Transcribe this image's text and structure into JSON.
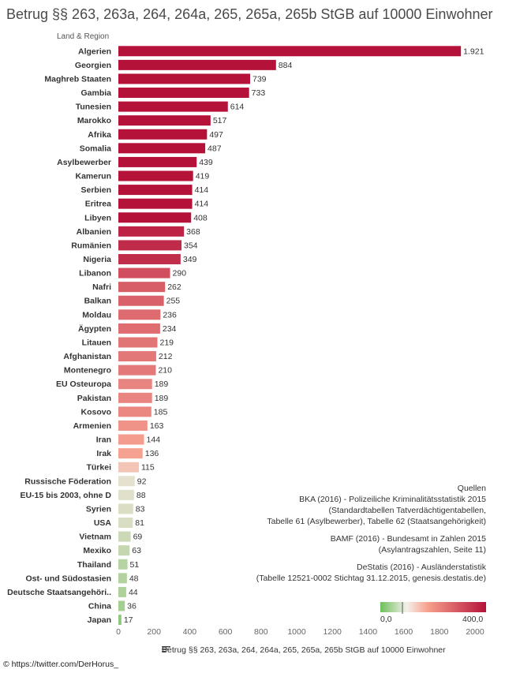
{
  "title": "Betrug §§ 263, 263a, 264, 264a, 265, 265a, 265b StGB auf 10000 Einwohner",
  "region_header": "Land & Region",
  "sources": {
    "heading": "Quellen",
    "lines1": [
      "BKA (2016) - Polizeiliche Kriminalitätsstatistik 2015",
      "(Standardtabellen Tatverdächtigentabellen,",
      "Tabelle 61 (Asylbewerber), Tabelle 62 (Staatsangehörigkeit)"
    ],
    "lines2": [
      "BAMF (2016) - Bundesamt in Zahlen 2015",
      "(Asylantragszahlen, Seite 11)"
    ],
    "lines3": [
      "DeStatis (2016) -  Ausländerstatistik",
      "(Tabelle 12521-0002 Stichtag 31.12.2015,  genesis.destatis.de)"
    ]
  },
  "legend": {
    "low_label": "0,0",
    "high_label": "400,0",
    "low_color": "#6dbf5c",
    "mid_color": "#f4f0ea",
    "high_color": "#b5123a"
  },
  "credit": "© https://twitter.com/DerHorus_",
  "chart_data": {
    "type": "bar",
    "orientation": "horizontal",
    "title": "Betrug §§ 263, 263a, 264, 264a, 265, 265a, 265b StGB auf 10000 Einwohner",
    "xlabel": "Betrug §§ 263, 263a, 264, 264a, 265, 265a, 265b StGB auf 10000 Einwohner",
    "ylabel": "Land & Region",
    "xlim": [
      0,
      2000
    ],
    "x_ticks": [
      "0",
      "200",
      "400",
      "600",
      "800",
      "1000",
      "1200",
      "1400",
      "1600",
      "1800",
      "2000"
    ],
    "grid": false,
    "categories": [
      "Algerien",
      "Georgien",
      "Maghreb Staaten",
      "Gambia",
      "Tunesien",
      "Marokko",
      "Afrika",
      "Somalia",
      "Asylbewerber",
      "Kamerun",
      "Serbien",
      "Eritrea",
      "Libyen",
      "Albanien",
      "Rumänien",
      "Nigeria",
      "Libanon",
      "Nafri",
      "Balkan",
      "Moldau",
      "Ägypten",
      "Litauen",
      "Afghanistan",
      "Montenegro",
      "EU Osteuropa",
      "Pakistan",
      "Kosovo",
      "Armenien",
      "Iran",
      "Irak",
      "Türkei",
      "Russische Föderation",
      "EU-15 bis 2003, ohne D",
      "Syrien",
      "USA",
      "Vietnam",
      "Mexiko",
      "Thailand",
      "Ost- und Südostasien",
      "Deutsche Staatsangehöri..",
      "China",
      "Japan"
    ],
    "values": [
      1921,
      884,
      739,
      733,
      614,
      517,
      497,
      487,
      439,
      419,
      414,
      414,
      408,
      368,
      354,
      349,
      290,
      262,
      255,
      236,
      234,
      219,
      212,
      210,
      189,
      189,
      185,
      163,
      144,
      136,
      115,
      92,
      88,
      83,
      81,
      69,
      63,
      51,
      48,
      44,
      36,
      17
    ],
    "value_labels": [
      "1.921",
      "884",
      "739",
      "733",
      "614",
      "517",
      "497",
      "487",
      "439",
      "419",
      "414",
      "414",
      "408",
      "368",
      "354",
      "349",
      "290",
      "262",
      "255",
      "236",
      "234",
      "219",
      "212",
      "210",
      "189",
      "189",
      "185",
      "163",
      "144",
      "136",
      "115",
      "92",
      "88",
      "83",
      "81",
      "69",
      "63",
      "51",
      "48",
      "44",
      "36",
      "17"
    ],
    "color_scale": {
      "type": "diverging",
      "min": 0,
      "center": 100,
      "max": 400
    }
  }
}
